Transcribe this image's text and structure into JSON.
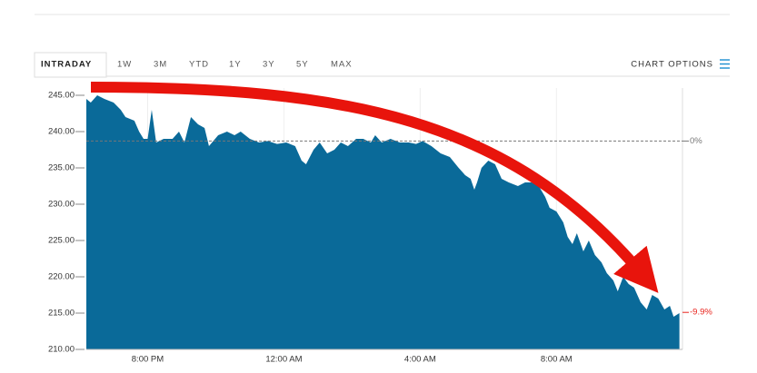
{
  "ui": {
    "tabs": [
      "INTRADAY",
      "1W",
      "3M",
      "YTD",
      "1Y",
      "3Y",
      "5Y",
      "MAX"
    ],
    "chart_options": "CHART OPTIONS"
  },
  "chart_data": {
    "type": "area",
    "color": "#0a6a99",
    "x": [
      18.2,
      18.33,
      18.52,
      18.73,
      19.0,
      19.21,
      19.35,
      19.61,
      19.75,
      19.88,
      20.0,
      20.12,
      20.25,
      20.47,
      20.73,
      20.92,
      21.08,
      21.27,
      21.48,
      21.67,
      21.8,
      22.07,
      22.33,
      22.55,
      22.73,
      23.0,
      23.27,
      23.53,
      23.8,
      24.07,
      24.33,
      24.52,
      24.65,
      24.87,
      25.05,
      25.27,
      25.48,
      25.67,
      25.88,
      26.12,
      26.33,
      26.55,
      26.68,
      26.87,
      27.13,
      27.4,
      27.67,
      27.88,
      28.07,
      28.33,
      28.6,
      28.87,
      29.13,
      29.32,
      29.48,
      29.59,
      29.67,
      29.8,
      30.0,
      30.2,
      30.39,
      30.6,
      30.87,
      31.08,
      31.27,
      31.48,
      31.67,
      31.8,
      32.0,
      32.2,
      32.33,
      32.47,
      32.6,
      32.79,
      32.95,
      33.13,
      33.32,
      33.48,
      33.67,
      33.8,
      33.96,
      34.12,
      34.28,
      34.47,
      34.65,
      34.81,
      34.99,
      35.17,
      35.33,
      35.44,
      35.61
    ],
    "values": [
      244.5,
      244,
      245,
      244.5,
      244,
      243,
      242,
      241.5,
      240,
      239,
      239,
      243,
      238.5,
      239,
      239,
      240,
      238.5,
      242,
      241,
      240.5,
      238,
      239.5,
      240,
      239.5,
      240,
      239,
      238.5,
      238.7,
      238.3,
      238.5,
      238,
      236,
      235.5,
      237.5,
      238.5,
      237,
      237.5,
      238.5,
      238,
      239,
      239,
      238.5,
      239.5,
      238.5,
      239,
      238.5,
      238.5,
      238.3,
      238.7,
      238,
      237,
      236.5,
      235,
      234,
      233.5,
      232,
      233,
      235,
      236,
      235.5,
      233.5,
      233,
      232.5,
      233,
      233,
      232.5,
      231,
      229.5,
      229,
      227.5,
      225.5,
      224.5,
      226,
      223.5,
      225,
      223,
      222,
      220.5,
      219.5,
      218,
      220,
      219,
      218.5,
      216.5,
      215.5,
      217.5,
      217,
      215.5,
      216,
      214.5,
      215
    ],
    "xlim": [
      18.2,
      35.7
    ],
    "xticks": [
      {
        "value": 20,
        "label": "8:00 PM"
      },
      {
        "value": 24,
        "label": "12:00 AM"
      },
      {
        "value": 28,
        "label": "4:00 AM"
      },
      {
        "value": 32,
        "label": "8:00 AM"
      }
    ],
    "ylim": [
      210,
      246
    ],
    "yticks": [
      {
        "value": 210,
        "label": "210.00"
      },
      {
        "value": 215,
        "label": "215.00"
      },
      {
        "value": 220,
        "label": "220.00"
      },
      {
        "value": 225,
        "label": "225.00"
      },
      {
        "value": 230,
        "label": "230.00"
      },
      {
        "value": 235,
        "label": "235.00"
      },
      {
        "value": 240,
        "label": "240.00"
      },
      {
        "value": 245,
        "label": "245.00"
      }
    ],
    "grid": true,
    "reference_lines": [
      {
        "value": 238.7,
        "label": "0%",
        "color": "#777777",
        "line": true
      },
      {
        "value": 215.1,
        "label": "-9.9%",
        "color": "#e8231c",
        "line": false
      }
    ]
  }
}
